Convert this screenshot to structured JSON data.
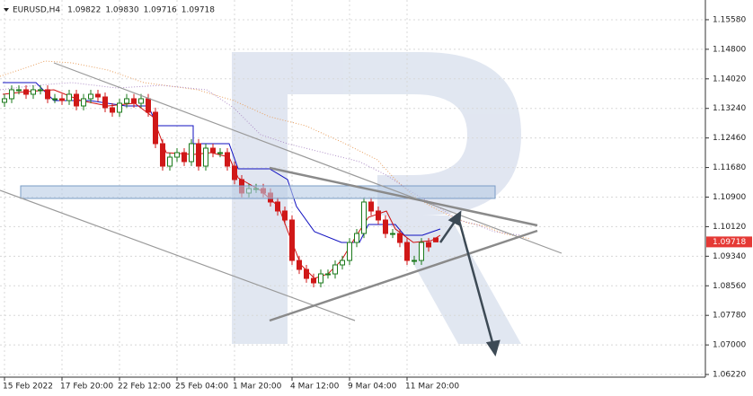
{
  "chart_data": {
    "type": "candlestick",
    "title": "EURUSD,H4",
    "header_values": [
      "1.09822",
      "1.09830",
      "1.09716",
      "1.09718"
    ],
    "categories": [
      "15 Feb 2022",
      null,
      null,
      null,
      null,
      null,
      null,
      null,
      "17 Feb 20:00",
      null,
      null,
      null,
      null,
      null,
      null,
      null,
      "22 Feb 12:00",
      null,
      null,
      null,
      null,
      null,
      null,
      null,
      "25 Feb 04:00",
      null,
      null,
      null,
      null,
      null,
      null,
      null,
      "1 Mar 20:00",
      null,
      null,
      null,
      null,
      null,
      null,
      null,
      "4 Mar 12:00",
      null,
      null,
      null,
      null,
      null,
      null,
      null,
      "9 Mar 04:00",
      null,
      null,
      null,
      null,
      null,
      null,
      null,
      "11 Mar 20:00",
      null,
      null,
      null,
      null
    ],
    "open": [
      1.134,
      1.13495,
      1.13732,
      1.13732,
      1.13613,
      1.13732,
      1.13732,
      1.13495,
      1.13495,
      1.13447,
      1.13613,
      1.13305,
      1.13495,
      1.13613,
      1.13542,
      1.13258,
      1.13139,
      1.13376,
      1.13495,
      1.13376,
      1.13495,
      1.13139,
      1.1231,
      1.11717,
      1.11954,
      1.12073,
      1.11836,
      1.1231,
      1.11717,
      1.12191,
      1.12073,
      1.12073,
      1.11717,
      1.11362,
      1.11007,
      1.11125,
      1.11125,
      1.11007,
      1.1077,
      1.10533,
      1.10296,
      1.09229,
      1.08992,
      1.08755,
      1.08637,
      1.08874,
      1.08874,
      1.09111,
      1.09229,
      1.09703,
      1.0994,
      1.1077,
      1.10533,
      1.10296,
      1.0994,
      1.0994,
      1.09703,
      1.09229,
      1.09229,
      1.09703,
      1.09822
    ],
    "high": [
      1.1362,
      1.1385,
      1.1385,
      1.1385,
      1.1385,
      1.1385,
      1.1385,
      1.1362,
      1.1362,
      1.1373,
      1.1373,
      1.1362,
      1.1373,
      1.1373,
      1.1366,
      1.1338,
      1.135,
      1.1362,
      1.1362,
      1.1362,
      1.1362,
      1.1326,
      1.1243,
      1.1207,
      1.1219,
      1.1219,
      1.1243,
      1.1243,
      1.1231,
      1.1231,
      1.1219,
      1.1219,
      1.1184,
      1.1148,
      1.1125,
      1.1125,
      1.1125,
      1.1113,
      1.1089,
      1.1065,
      1.1042,
      1.0935,
      1.0911,
      1.0888,
      1.0899,
      1.0899,
      1.0923,
      1.0935,
      1.0982,
      1.1006,
      1.1089,
      1.1089,
      1.1065,
      1.1042,
      1.1006,
      1.1006,
      1.0982,
      1.0935,
      1.0982,
      1.0982,
      1.0983
    ],
    "low": [
      1.1328,
      1.1338,
      1.1361,
      1.1349,
      1.1349,
      1.1361,
      1.1338,
      1.1338,
      1.1333,
      1.1333,
      1.1319,
      1.1319,
      1.1338,
      1.1342,
      1.1314,
      1.1302,
      1.1302,
      1.1326,
      1.1326,
      1.1326,
      1.1302,
      1.1219,
      1.116,
      1.116,
      1.1183,
      1.1172,
      1.1172,
      1.116,
      1.116,
      1.1195,
      1.1195,
      1.116,
      1.1124,
      1.1089,
      1.1089,
      1.1101,
      1.1089,
      1.1065,
      1.1041,
      1.1018,
      1.0911,
      1.0887,
      1.0864,
      1.0852,
      1.0852,
      1.0875,
      1.0875,
      1.0899,
      1.0911,
      1.0958,
      1.0982,
      1.1041,
      1.1018,
      1.0982,
      1.0982,
      1.0958,
      1.0911,
      1.0911,
      1.0911,
      1.0946,
      1.09716
    ],
    "close": [
      1.13495,
      1.13732,
      1.13732,
      1.13613,
      1.13732,
      1.13732,
      1.13495,
      1.13495,
      1.13447,
      1.13613,
      1.13305,
      1.13495,
      1.13613,
      1.13542,
      1.13258,
      1.13139,
      1.13376,
      1.13495,
      1.13376,
      1.13495,
      1.13139,
      1.1231,
      1.11717,
      1.11954,
      1.12073,
      1.11836,
      1.1231,
      1.11717,
      1.12191,
      1.12073,
      1.12073,
      1.11717,
      1.11362,
      1.11007,
      1.11125,
      1.11125,
      1.11007,
      1.1077,
      1.10533,
      1.10296,
      1.09229,
      1.08992,
      1.08755,
      1.08637,
      1.08874,
      1.08874,
      1.09111,
      1.09229,
      1.09703,
      1.0994,
      1.1077,
      1.10533,
      1.10296,
      1.0994,
      1.0994,
      1.09703,
      1.09229,
      1.09229,
      1.09703,
      1.09585,
      1.09718
    ],
    "up_color": "#1b7a1b",
    "down_color": "#d01818",
    "ylim": [
      1.0615,
      1.161
    ],
    "yticks": [
      {
        "value": 1.1558,
        "label": "1.15580"
      },
      {
        "value": 1.148,
        "label": "1.14800"
      },
      {
        "value": 1.1402,
        "label": "1.14020"
      },
      {
        "value": 1.1324,
        "label": "1.13240"
      },
      {
        "value": 1.1246,
        "label": "1.12460"
      },
      {
        "value": 1.1168,
        "label": "1.11680"
      },
      {
        "value": 1.109,
        "label": "1.10900"
      },
      {
        "value": 1.1012,
        "label": "1.10120"
      },
      {
        "value": 1.0934,
        "label": "1.09340"
      },
      {
        "value": 1.0856,
        "label": "1.08560"
      },
      {
        "value": 1.0778,
        "label": "1.07780"
      },
      {
        "value": 1.07,
        "label": "1.07000"
      },
      {
        "value": 1.0622,
        "label": "1.06220"
      }
    ],
    "grid": true,
    "last_price_label": "1.09718",
    "last_price_color": "#e53935"
  }
}
